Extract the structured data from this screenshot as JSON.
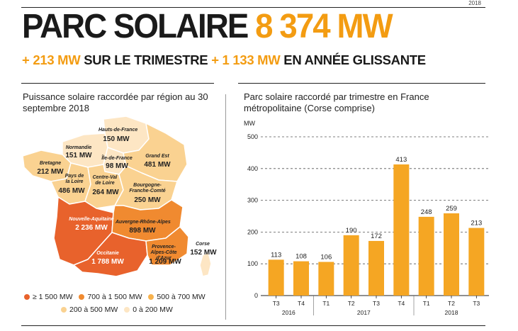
{
  "header": {
    "year": "2018",
    "title_main": "PARC SOLAIRE",
    "title_value": "8 374 MW",
    "sub_quarter_value": "+ 213 MW",
    "sub_quarter_label": "SUR LE TRIMESTRE",
    "sub_year_value": "+ 1 133 MW",
    "sub_year_label": "EN ANNÉE GLISSANTE"
  },
  "map": {
    "title": "Puissance solaire raccordée par région au 30 septembre 2018",
    "regions": [
      {
        "name": "Hauts-de-France",
        "value": "150 MW"
      },
      {
        "name": "Normandie",
        "value": "151 MW"
      },
      {
        "name": "Île-de-France",
        "value": "98 MW"
      },
      {
        "name": "Grand Est",
        "value": "481 MW"
      },
      {
        "name": "Bretagne",
        "value": "212 MW"
      },
      {
        "name": "Pays de la Loire",
        "value": "486 MW"
      },
      {
        "name": "Centre-Val de Loire",
        "value": "264 MW"
      },
      {
        "name": "Bourgogne-Franche-Comté",
        "value": "250 MW"
      },
      {
        "name": "Nouvelle-Aquitaine",
        "value": "2 236 MW"
      },
      {
        "name": "Auvergne-Rhône-Alpes",
        "value": "898 MW"
      },
      {
        "name": "Occitanie",
        "value": "1 788 MW"
      },
      {
        "name": "Provence-Alpes-Côte d'Azur",
        "value": "1 209 MW"
      },
      {
        "name": "Corse",
        "value": "152 MW"
      }
    ],
    "legend": [
      {
        "label": "≥ 1 500 MW",
        "color": "#e8622c"
      },
      {
        "label": "700 à 1 500 MW",
        "color": "#f08a30"
      },
      {
        "label": "500 à 700 MW",
        "color": "#f7b24d"
      },
      {
        "label": "200 à 500 MW",
        "color": "#fad291"
      },
      {
        "label": "0 à 200 MW",
        "color": "#fde6c4"
      }
    ]
  },
  "chart": {
    "title": "Parc solaire raccordé par trimestre en France métropolitaine (Corse comprise)"
  },
  "chart_data": {
    "type": "bar",
    "ylabel": "MW",
    "ylim": [
      0,
      500
    ],
    "yticks": [
      0,
      100,
      200,
      300,
      400,
      500
    ],
    "grid": true,
    "categories": [
      "T3",
      "T4",
      "T1",
      "T2",
      "T3",
      "T4",
      "T1",
      "T2",
      "T3"
    ],
    "values": [
      113,
      108,
      106,
      190,
      172,
      413,
      248,
      259,
      213
    ],
    "year_groups": [
      {
        "label": "2016",
        "start": 0,
        "end": 1
      },
      {
        "label": "2017",
        "start": 2,
        "end": 5
      },
      {
        "label": "2018",
        "start": 6,
        "end": 8
      }
    ],
    "bar_color": "#f5a623"
  }
}
